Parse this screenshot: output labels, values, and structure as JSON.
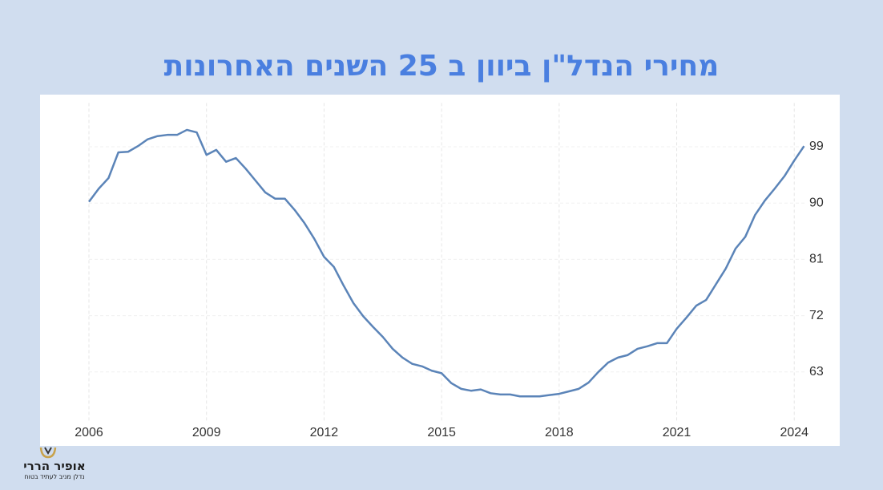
{
  "chart_data": {
    "type": "line",
    "title": "מחירי הנדל\"ן ביוון ב 25 השנים האחרונות",
    "x": [
      2006,
      2006.25,
      2006.5,
      2006.75,
      2007,
      2007.25,
      2007.5,
      2007.75,
      2008,
      2008.25,
      2008.5,
      2008.75,
      2009,
      2009.25,
      2009.5,
      2009.75,
      2010,
      2010.25,
      2010.5,
      2010.75,
      2011,
      2011.25,
      2011.5,
      2011.75,
      2012,
      2012.25,
      2012.5,
      2012.75,
      2013,
      2013.25,
      2013.5,
      2013.75,
      2014,
      2014.25,
      2014.5,
      2014.75,
      2015,
      2015.25,
      2015.5,
      2015.75,
      2016,
      2016.25,
      2016.5,
      2016.75,
      2017,
      2017.25,
      2017.5,
      2017.75,
      2018,
      2018.25,
      2018.5,
      2018.75,
      2019,
      2019.25,
      2019.5,
      2019.75,
      2020,
      2020.25,
      2020.5,
      2020.75,
      2021,
      2021.25,
      2021.5,
      2021.75,
      2022,
      2022.25,
      2022.5,
      2022.75,
      2023,
      2023.25,
      2023.5,
      2023.75,
      2024,
      2024.25
    ],
    "values": [
      90.2,
      92.3,
      94,
      98.1,
      98.2,
      99.1,
      100.2,
      100.7,
      100.9,
      100.9,
      101.7,
      101.3,
      97.7,
      98.5,
      96.6,
      97.2,
      95.5,
      93.6,
      91.7,
      90.7,
      90.7,
      88.9,
      86.8,
      84.3,
      81.4,
      79.8,
      76.8,
      74,
      71.9,
      70.2,
      68.6,
      66.7,
      65.3,
      64.3,
      63.9,
      63.2,
      62.8,
      61.2,
      60.3,
      60,
      60.2,
      59.6,
      59.4,
      59.4,
      59.1,
      59.1,
      59.1,
      59.3,
      59.5,
      59.9,
      60.3,
      61.3,
      63,
      64.5,
      65.3,
      65.7,
      66.7,
      67.1,
      67.6,
      67.6,
      69.9,
      71.7,
      73.6,
      74.5,
      77,
      79.5,
      82.7,
      84.6,
      88.1,
      90.4,
      92.3,
      94.3,
      96.8,
      99.1
    ],
    "color": "#5b84b8",
    "xlim": [
      2006,
      2024.5
    ],
    "xticks": [
      2006,
      2009,
      2012,
      2015,
      2018,
      2021,
      2024
    ],
    "ylim": [
      55,
      106
    ],
    "yticks": [
      63,
      72,
      81,
      90,
      99
    ],
    "grid": true
  },
  "logo": {
    "name": "אופיר הררי",
    "tagline": "נדלן מניב לעתיד בטוח"
  }
}
